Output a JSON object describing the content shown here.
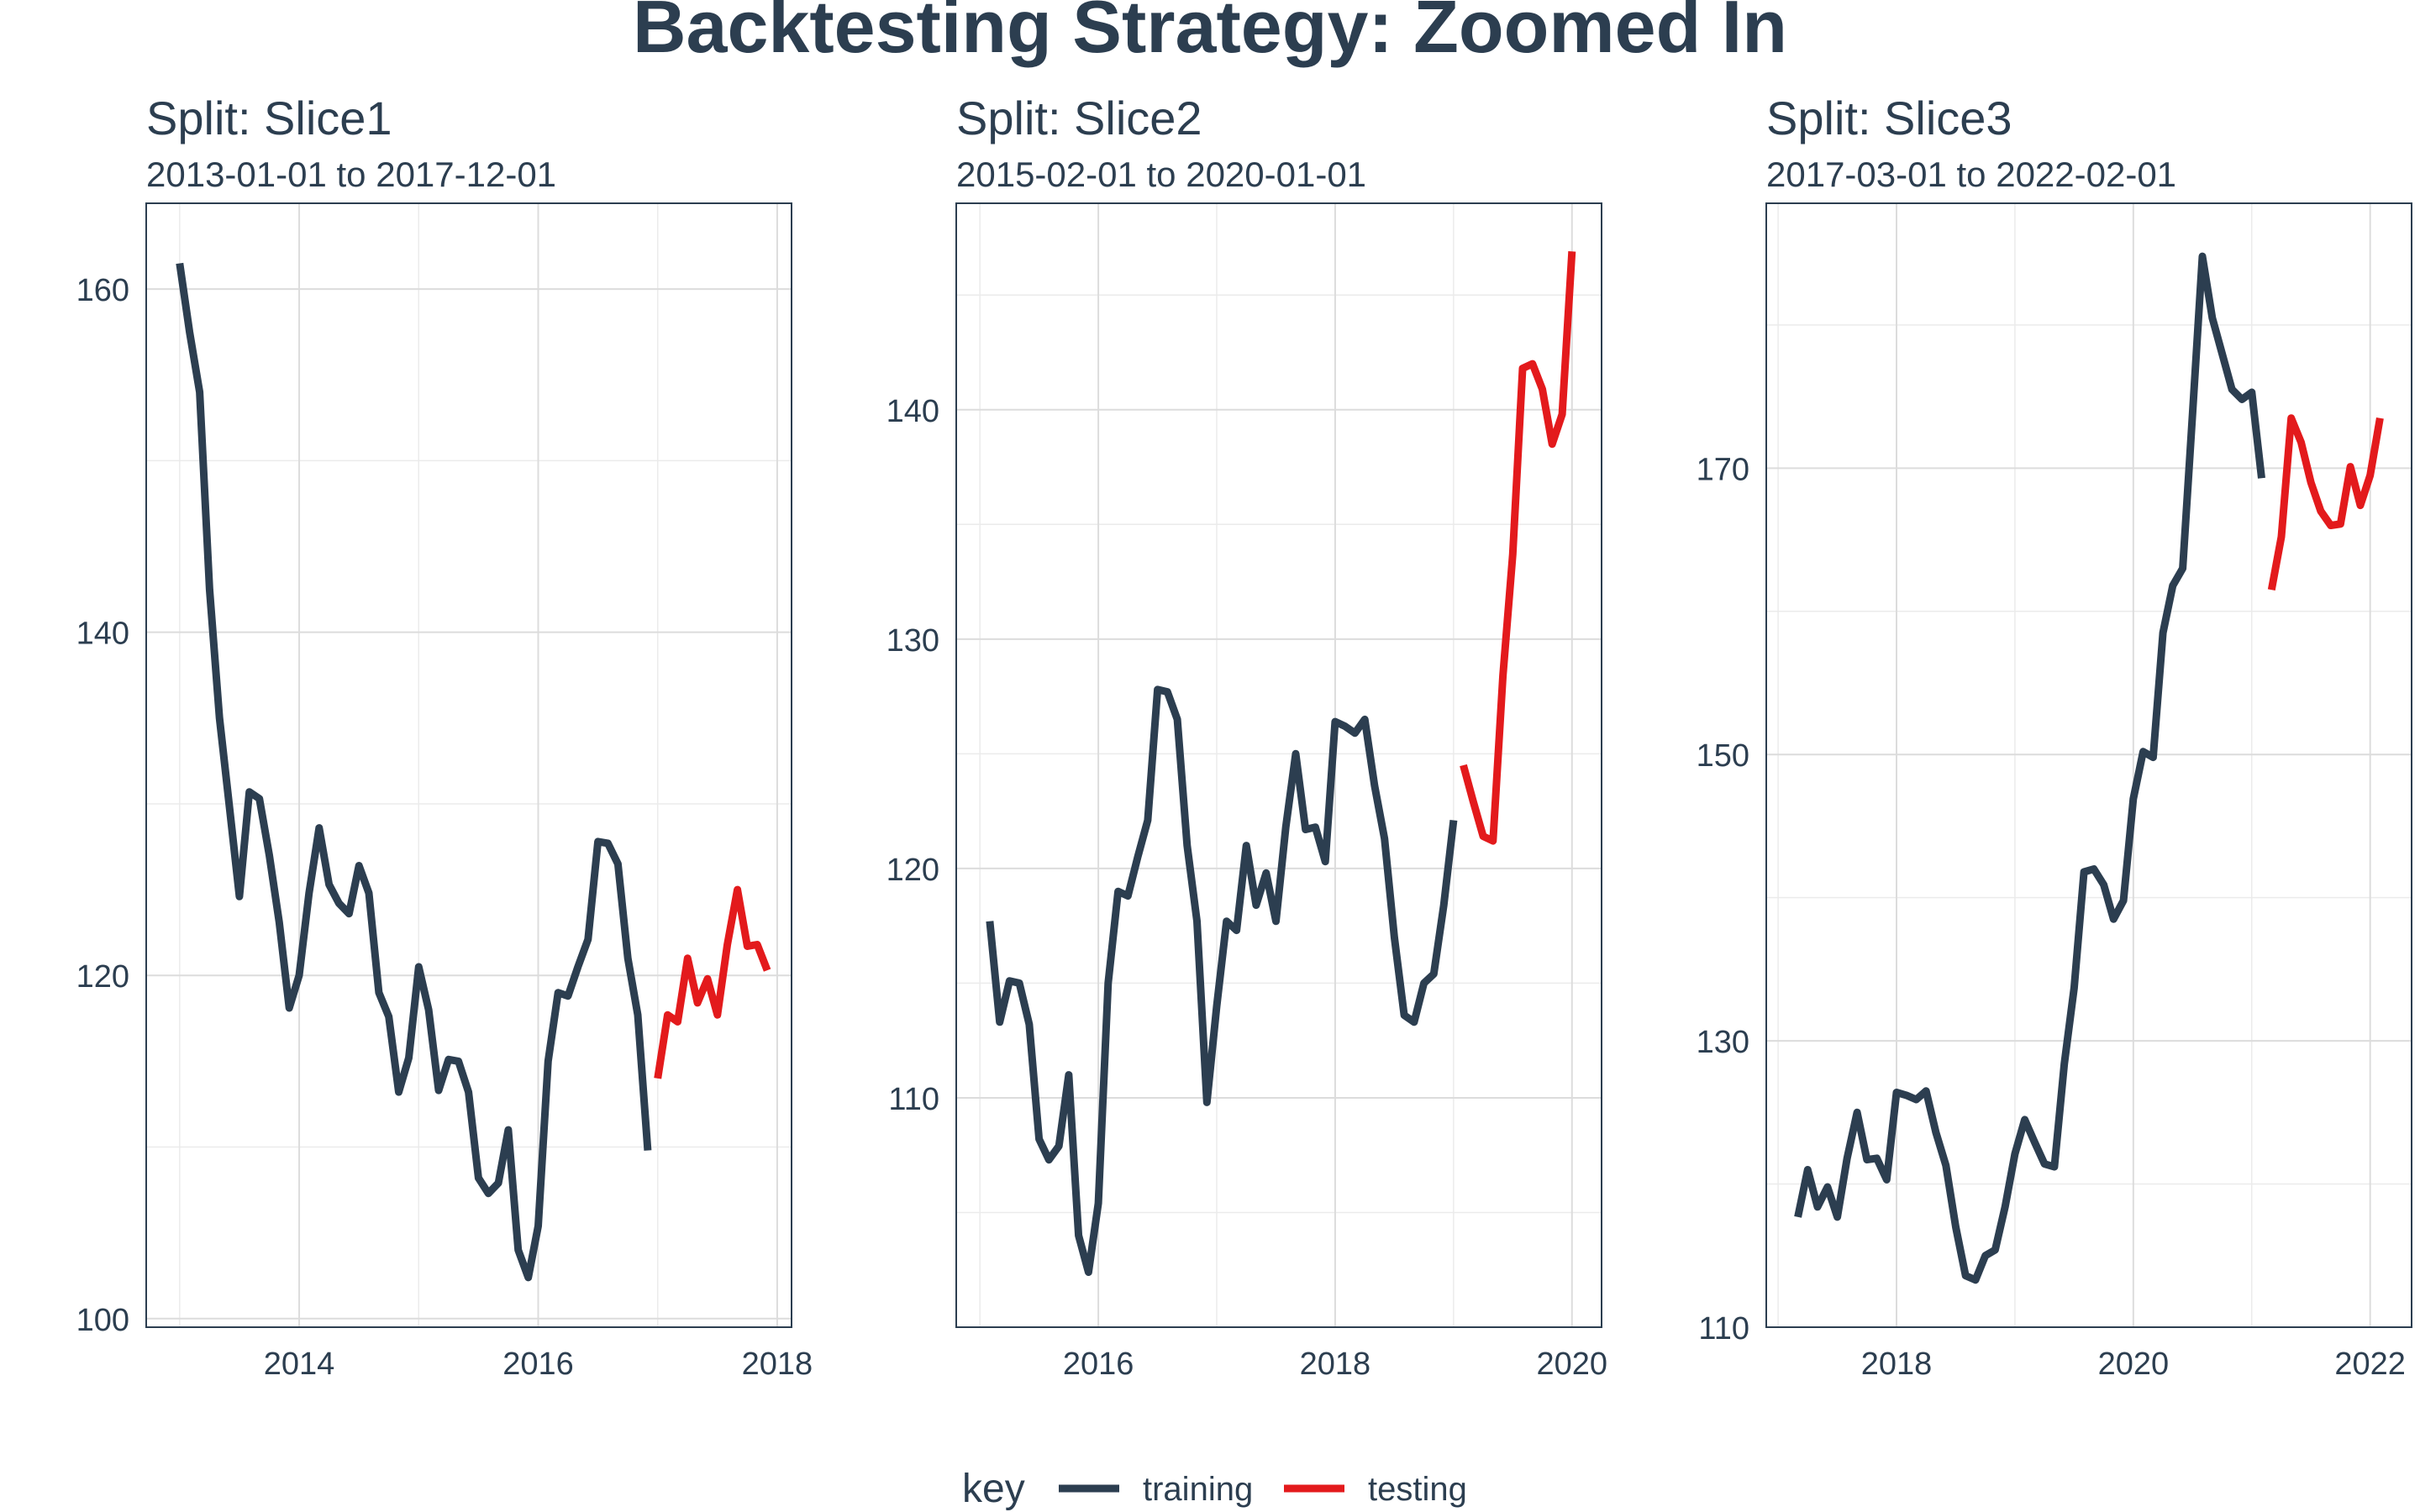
{
  "title": "Backtesting Strategy: Zoomed In",
  "colors": {
    "training": "#2c3e50",
    "testing": "#e31a1c"
  },
  "legend": {
    "title": "key",
    "items": [
      {
        "label": "training",
        "color_key": "training"
      },
      {
        "label": "testing",
        "color_key": "testing"
      }
    ]
  },
  "chart_data": [
    {
      "type": "line",
      "title": "Split: Slice1",
      "subtitle": "2013-01-01 to 2017-12-01",
      "x_ticks": [
        2014,
        2016,
        2018
      ],
      "y_ticks": [
        100,
        120,
        140,
        160
      ],
      "xlim": [
        2012.72,
        2018.12
      ],
      "ylim": [
        99.5,
        165
      ],
      "grid": true,
      "series": [
        {
          "name": "training",
          "x": [
            2013.0,
            2013.083,
            2013.167,
            2013.25,
            2013.333,
            2013.417,
            2013.5,
            2013.583,
            2013.667,
            2013.75,
            2013.833,
            2013.917,
            2014.0,
            2014.083,
            2014.167,
            2014.25,
            2014.333,
            2014.417,
            2014.5,
            2014.583,
            2014.667,
            2014.75,
            2014.833,
            2014.917,
            2015.0,
            2015.083,
            2015.167,
            2015.25,
            2015.333,
            2015.417,
            2015.5,
            2015.583,
            2015.667,
            2015.75,
            2015.833,
            2015.917,
            2016.0,
            2016.083,
            2016.167,
            2016.25,
            2016.333,
            2016.417,
            2016.5,
            2016.583,
            2016.667,
            2016.75,
            2016.833,
            2016.917
          ],
          "y": [
            161.5,
            157.5,
            154.0,
            142.5,
            135.0,
            129.8,
            124.6,
            130.7,
            130.3,
            127.0,
            123.1,
            118.1,
            120.0,
            124.8,
            128.6,
            125.3,
            124.2,
            123.6,
            126.4,
            124.8,
            119.0,
            117.6,
            113.2,
            115.2,
            120.5,
            118.0,
            113.3,
            115.1,
            115.0,
            113.2,
            108.2,
            107.3,
            107.9,
            111.0,
            104.0,
            102.4,
            105.4,
            115.0,
            119.0,
            118.8,
            120.5,
            122.1,
            127.8,
            127.7,
            126.5,
            121.0,
            117.7,
            109.8
          ]
        },
        {
          "name": "testing",
          "x": [
            2017.0,
            2017.083,
            2017.167,
            2017.25,
            2017.333,
            2017.417,
            2017.5,
            2017.583,
            2017.667,
            2017.75,
            2017.833,
            2017.917
          ],
          "y": [
            114.0,
            117.7,
            117.3,
            121.0,
            118.4,
            119.8,
            117.7,
            121.8,
            125.0,
            121.7,
            121.8,
            120.3
          ]
        }
      ]
    },
    {
      "type": "line",
      "title": "Split: Slice2",
      "subtitle": "2015-02-01 to 2020-01-01",
      "x_ticks": [
        2016,
        2018,
        2020
      ],
      "y_ticks": [
        110,
        120,
        130,
        140
      ],
      "xlim": [
        2014.8,
        2020.25
      ],
      "ylim": [
        100,
        149
      ],
      "grid": true,
      "series": [
        {
          "name": "training",
          "x": [
            2015.083,
            2015.167,
            2015.25,
            2015.333,
            2015.417,
            2015.5,
            2015.583,
            2015.667,
            2015.75,
            2015.833,
            2015.917,
            2016.0,
            2016.083,
            2016.167,
            2016.25,
            2016.333,
            2016.417,
            2016.5,
            2016.583,
            2016.667,
            2016.75,
            2016.833,
            2016.917,
            2017.0,
            2017.083,
            2017.167,
            2017.25,
            2017.333,
            2017.417,
            2017.5,
            2017.583,
            2017.667,
            2017.75,
            2017.833,
            2017.917,
            2018.0,
            2018.083,
            2018.167,
            2018.25,
            2018.333,
            2018.417,
            2018.5,
            2018.583,
            2018.667,
            2018.75,
            2018.833,
            2018.917,
            2019.0
          ],
          "y": [
            117.7,
            113.3,
            115.1,
            115.0,
            113.2,
            108.2,
            107.3,
            107.9,
            111.0,
            104.0,
            102.4,
            105.4,
            115.0,
            119.0,
            118.8,
            120.5,
            122.1,
            127.8,
            127.7,
            126.5,
            121.0,
            117.7,
            109.8,
            114.0,
            117.7,
            117.3,
            121.0,
            118.4,
            119.8,
            117.7,
            121.8,
            125.0,
            121.7,
            121.8,
            120.3,
            126.4,
            126.2,
            125.9,
            126.5,
            123.6,
            121.3,
            117.0,
            113.6,
            113.3,
            115.0,
            115.4,
            118.4,
            122.1
          ]
        },
        {
          "name": "testing",
          "x": [
            2019.083,
            2019.167,
            2019.25,
            2019.333,
            2019.417,
            2019.5,
            2019.583,
            2019.667,
            2019.75,
            2019.833,
            2019.917,
            2020.0
          ],
          "y": [
            124.5,
            122.9,
            121.4,
            121.2,
            128.4,
            133.7,
            141.8,
            142.0,
            140.9,
            138.5,
            139.8,
            146.9
          ]
        }
      ]
    },
    {
      "type": "line",
      "title": "Split: Slice3",
      "subtitle": "2017-03-01 to 2022-02-01",
      "x_ticks": [
        2018,
        2020,
        2022
      ],
      "y_ticks": [
        110,
        130,
        150,
        170
      ],
      "xlim": [
        2016.9,
        2022.35
      ],
      "ylim": [
        110,
        188.5
      ],
      "grid": true,
      "series": [
        {
          "name": "training",
          "x": [
            2017.167,
            2017.25,
            2017.333,
            2017.417,
            2017.5,
            2017.583,
            2017.667,
            2017.75,
            2017.833,
            2017.917,
            2018.0,
            2018.083,
            2018.167,
            2018.25,
            2018.333,
            2018.417,
            2018.5,
            2018.583,
            2018.667,
            2018.75,
            2018.833,
            2018.917,
            2019.0,
            2019.083,
            2019.167,
            2019.25,
            2019.333,
            2019.417,
            2019.5,
            2019.583,
            2019.667,
            2019.75,
            2019.833,
            2019.917,
            2020.0,
            2020.083,
            2020.167,
            2020.25,
            2020.333,
            2020.417,
            2020.5,
            2020.583,
            2020.667,
            2020.75,
            2020.833,
            2020.917,
            2021.0,
            2021.083
          ],
          "y": [
            117.7,
            121.0,
            118.4,
            119.8,
            117.7,
            121.8,
            125.0,
            121.7,
            121.8,
            120.3,
            126.4,
            126.2,
            125.9,
            126.5,
            123.6,
            121.3,
            117.0,
            113.6,
            113.3,
            115.0,
            115.4,
            118.4,
            122.1,
            124.5,
            122.9,
            121.4,
            121.2,
            128.4,
            133.7,
            141.8,
            142.0,
            140.9,
            138.5,
            139.8,
            146.9,
            150.2,
            149.8,
            158.5,
            161.8,
            163.0,
            173.8,
            184.8,
            180.5,
            178.0,
            175.5,
            174.8,
            175.3,
            169.3
          ]
        },
        {
          "name": "testing",
          "x": [
            2021.167,
            2021.25,
            2021.333,
            2021.417,
            2021.5,
            2021.583,
            2021.667,
            2021.75,
            2021.833,
            2021.917,
            2022.0,
            2022.083
          ],
          "y": [
            161.5,
            165.2,
            173.5,
            171.8,
            169.0,
            167.0,
            166.0,
            166.1,
            170.1,
            167.4,
            169.5,
            173.5
          ]
        }
      ]
    }
  ]
}
